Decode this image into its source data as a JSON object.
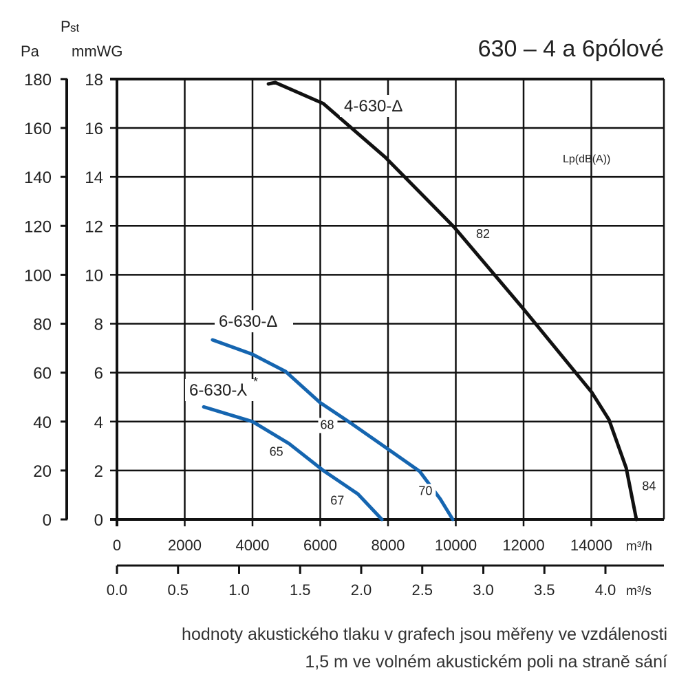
{
  "chart_data": {
    "type": "line",
    "title": "630 – 4 a 6pólové",
    "ylabel_pa": "Pa",
    "ylabel_p": "P",
    "ylabel_sub": "st",
    "ylabel_unit": "mmWG",
    "xlabel_m3h": "m³/h",
    "xlabel_m3s": "m³/s",
    "lp_label": "Lp(dB(A))",
    "xlim": [
      0,
      16200
    ],
    "ylim": [
      0,
      18
    ],
    "x_ticks": [
      "0",
      "2000",
      "4000",
      "6000",
      "8000",
      "10000",
      "12000",
      "14000"
    ],
    "x_tick_values": [
      0,
      2000,
      4000,
      6000,
      8000,
      10000,
      12000,
      14000
    ],
    "y_ticks_mmwg": [
      "0",
      "2",
      "4",
      "6",
      "8",
      "10",
      "12",
      "14",
      "16",
      "18"
    ],
    "y_ticks_pa": [
      "0",
      "20",
      "40",
      "60",
      "80",
      "100",
      "120",
      "140",
      "160",
      "180"
    ],
    "x2_ticks": [
      "0.0",
      "0.5",
      "1.0",
      "1.5",
      "2.0",
      "2.5",
      "3.0",
      "3.5",
      "4.0"
    ],
    "grid": true,
    "series": [
      {
        "name": "4-630-Δ",
        "color": "#111111",
        "x": [
          4470,
          4670,
          6090,
          7920,
          9950,
          12000,
          14010,
          14520,
          15030,
          15330
        ],
        "y": [
          17.8,
          17.86,
          17.0,
          14.8,
          11.95,
          8.6,
          5.2,
          4.08,
          2.1,
          0
        ]
      },
      {
        "name": "6-630-Δ",
        "color": "#1565b0",
        "x": [
          2820,
          4000,
          4975,
          5990,
          6900,
          7920,
          8930,
          9540,
          9910
        ],
        "y": [
          7.34,
          6.75,
          6.05,
          4.78,
          3.94,
          2.95,
          1.97,
          0.84,
          0
        ]
      },
      {
        "name": "6-630-⅄",
        "star": "*",
        "color": "#1565b0",
        "x": [
          2560,
          4000,
          5080,
          6090,
          7110,
          7820
        ],
        "y": [
          4.6,
          4.0,
          3.1,
          2.0,
          1.04,
          0
        ]
      }
    ],
    "annotations": [
      {
        "text": "82",
        "x": 10600,
        "y": 11.5
      },
      {
        "text": "84",
        "x": 15500,
        "y": 1.2
      },
      {
        "text": "68",
        "x": 6000,
        "y": 3.7
      },
      {
        "text": "70",
        "x": 8900,
        "y": 1.0
      },
      {
        "text": "65",
        "x": 4500,
        "y": 2.6
      },
      {
        "text": "67",
        "x": 6300,
        "y": 0.6
      }
    ]
  },
  "footnote": {
    "line1": "hodnoty akustického tlaku v grafech jsou měřeny ve vzdálenosti",
    "line2": "1,5 m ve volném akustickém poli na straně sání"
  }
}
